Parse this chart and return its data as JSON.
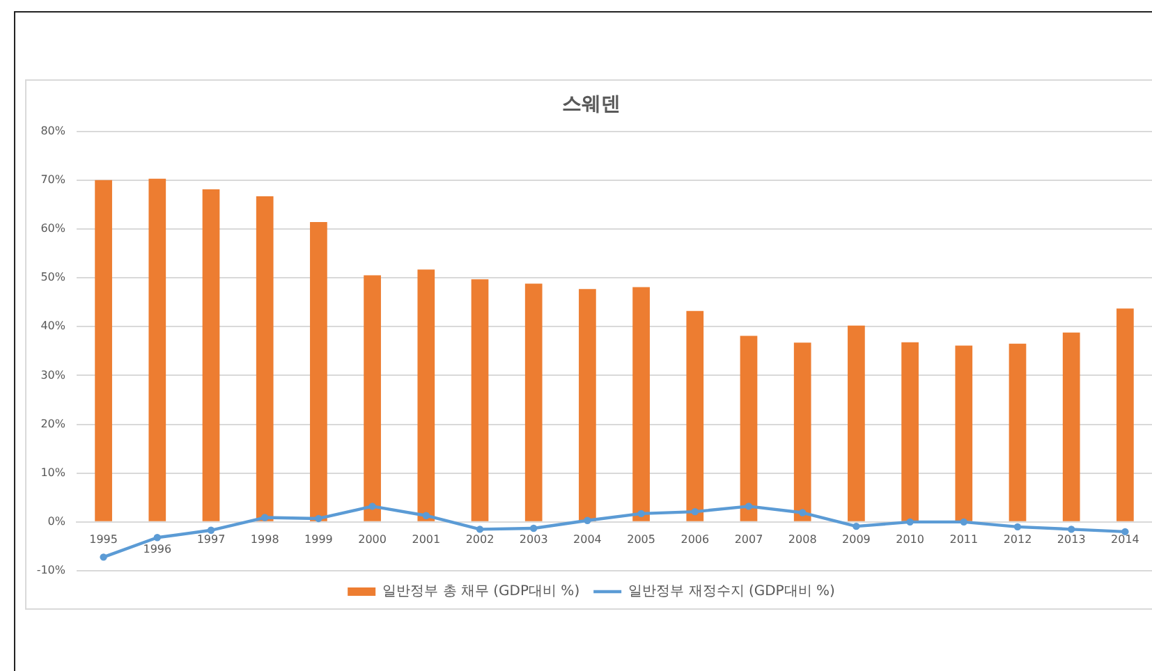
{
  "chart_data": {
    "type": "bar",
    "title": "스웨덴",
    "categories": [
      "1995",
      "1996",
      "1997",
      "1998",
      "1999",
      "2000",
      "2001",
      "2002",
      "2003",
      "2004",
      "2005",
      "2006",
      "2007",
      "2008",
      "2009",
      "2010",
      "2011",
      "2012",
      "2013",
      "2014"
    ],
    "series": [
      {
        "name": "일반정부 총 채무 (GDP대비 %)",
        "color": "#ed7d31",
        "values": [
          70.0,
          70.3,
          68.1,
          66.7,
          61.4,
          50.5,
          51.7,
          49.7,
          48.8,
          47.7,
          48.1,
          43.2,
          38.1,
          36.7,
          40.2,
          36.8,
          36.1,
          36.5,
          38.8,
          43.7
        ]
      },
      {
        "name": "일반정부 재정수지 (GDP대비 %)",
        "type": "line",
        "color": "#5b9bd5",
        "values": [
          -7.2,
          -3.2,
          -1.7,
          0.9,
          0.7,
          3.2,
          1.3,
          -1.5,
          -1.3,
          0.3,
          1.7,
          2.1,
          3.2,
          1.9,
          -0.9,
          0.0,
          0.0,
          -1.0,
          -1.5,
          -2.0
        ]
      }
    ],
    "ylim": [
      -10,
      80
    ],
    "yticks": [
      {
        "value": -10,
        "label": "-10%"
      },
      {
        "value": 0,
        "label": "0%"
      },
      {
        "value": 10,
        "label": "10%"
      },
      {
        "value": 20,
        "label": "20%"
      },
      {
        "value": 30,
        "label": "30%"
      },
      {
        "value": 40,
        "label": "40%"
      },
      {
        "value": 50,
        "label": "50%"
      },
      {
        "value": 60,
        "label": "60%"
      },
      {
        "value": 70,
        "label": "70%"
      },
      {
        "value": 80,
        "label": "80%"
      }
    ],
    "grid": "y",
    "legend": "bottom",
    "marker": "circle",
    "line_style": "solid"
  }
}
